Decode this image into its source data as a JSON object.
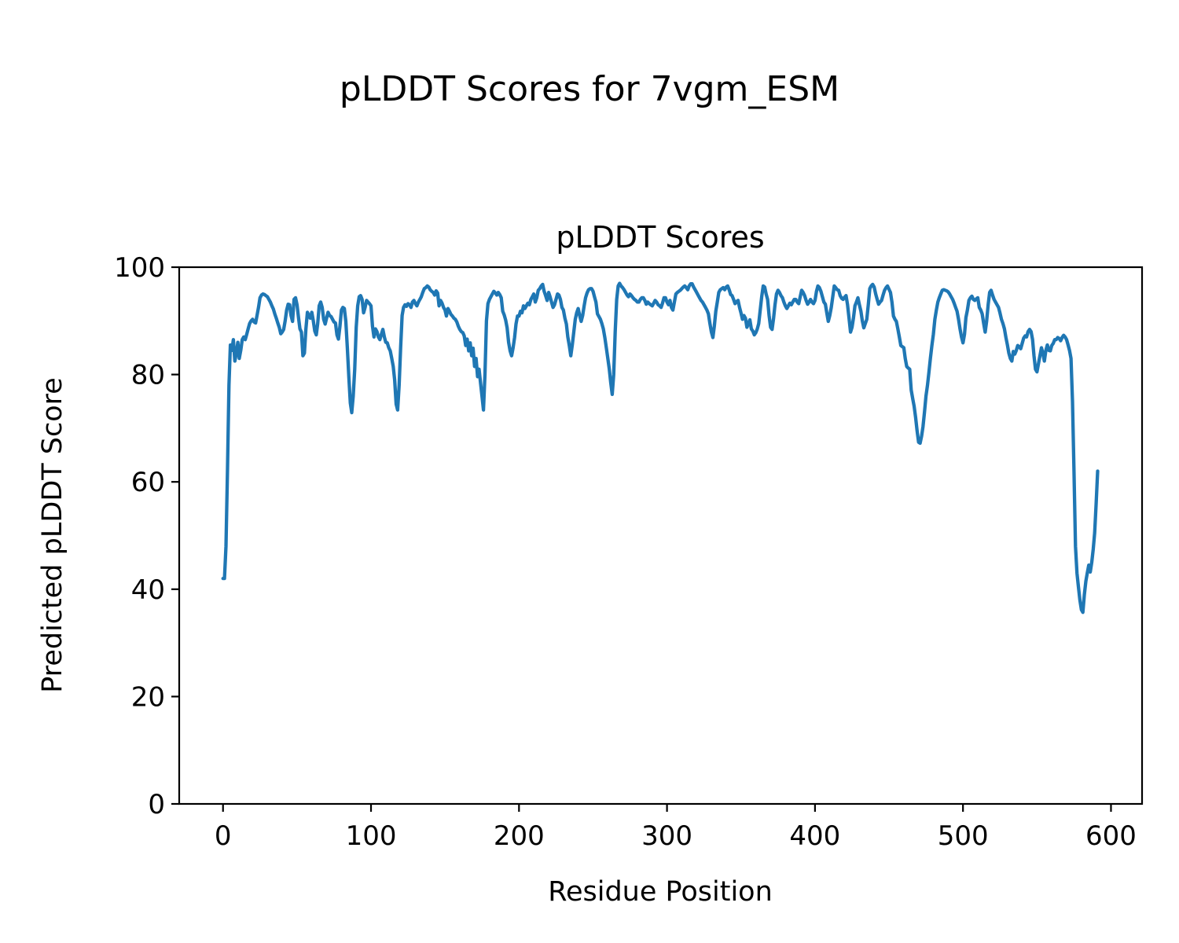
{
  "figure": {
    "suptitle": "pLDDT Scores for 7vgm_ESM",
    "background": "#ffffff"
  },
  "chart_data": {
    "type": "line",
    "title": "pLDDT Scores",
    "xlabel": "Residue Position",
    "ylabel": "Predicted pLDDT Score",
    "xlim": [
      -29.6,
      621
    ],
    "ylim": [
      0,
      100
    ],
    "xticks": [
      0,
      100,
      200,
      300,
      400,
      500,
      600
    ],
    "yticks": [
      0,
      20,
      40,
      60,
      80,
      100
    ],
    "grid": false,
    "legend": "none",
    "line_color": "#1f77b4",
    "x_start": 0,
    "x_step": 1,
    "values": [
      42,
      42,
      48,
      62,
      78,
      85.5,
      84.5,
      86.5,
      82.5,
      84,
      86,
      83,
      84.5,
      86.5,
      87,
      86.5,
      87.5,
      88.5,
      89.5,
      90,
      90.3,
      89.8,
      89.6,
      91,
      92.5,
      94.3,
      94.8,
      95,
      94.9,
      94.7,
      94.5,
      94,
      93.5,
      92.8,
      92.2,
      91.3,
      90.5,
      89.6,
      88.8,
      87.6,
      87.9,
      88.4,
      90,
      92,
      93.1,
      93,
      91,
      89.9,
      94,
      94.3,
      93,
      90.6,
      88.5,
      87.9,
      83.5,
      84,
      88.5,
      91.6,
      91,
      90.5,
      91.6,
      90,
      88.1,
      87.4,
      89.5,
      92.8,
      93.5,
      92.5,
      90.3,
      89.4,
      90.5,
      91.6,
      91,
      90.8,
      90.3,
      89.8,
      89.6,
      87.4,
      86.6,
      89,
      92,
      92.5,
      92.3,
      89.9,
      85,
      79.6,
      74.7,
      72.9,
      76,
      81,
      88.8,
      92.8,
      94.5,
      94.7,
      94,
      91.5,
      92.5,
      93.8,
      93.5,
      93.2,
      92.8,
      89,
      87,
      88.5,
      88,
      87,
      86.5,
      87.5,
      88.4,
      87,
      86,
      85.9,
      85,
      84.4,
      83,
      81.5,
      79,
      74.5,
      73.4,
      78,
      85,
      91,
      92.5,
      93,
      92.7,
      93.2,
      93,
      92.5,
      93.5,
      93.8,
      93.2,
      92.8,
      93.5,
      94,
      94.5,
      95.3,
      96,
      96.2,
      96.5,
      96.3,
      95.8,
      95.5,
      95.3,
      94.8,
      95.6,
      95.2,
      92.8,
      93.8,
      93.3,
      92.5,
      92,
      90.9,
      92.3,
      91.8,
      91.2,
      90.9,
      90.5,
      90.3,
      89.8,
      89,
      88.4,
      88,
      87.8,
      87.2,
      85.4,
      86.6,
      84.4,
      85.9,
      83.5,
      84.9,
      81.5,
      83,
      79.6,
      81,
      78.4,
      76,
      73.4,
      80,
      90,
      93.2,
      94,
      94.5,
      95,
      95.5,
      95.2,
      94.8,
      95.3,
      94.9,
      94.3,
      91.8,
      91.1,
      90.1,
      88.7,
      86,
      84.4,
      83.5,
      85,
      86.9,
      89.4,
      90.9,
      90.9,
      91.8,
      91.5,
      92.8,
      92.3,
      92.8,
      93.3,
      93,
      94,
      94.5,
      95,
      93.5,
      94.3,
      95.7,
      96,
      96.5,
      96.8,
      95.5,
      94.7,
      93.8,
      95.3,
      94.5,
      93.5,
      92.5,
      93,
      94,
      95,
      94.8,
      94,
      92.5,
      92,
      90.5,
      89.4,
      87,
      85.4,
      83.5,
      85.5,
      87.9,
      90.3,
      91.5,
      92.3,
      91,
      89.9,
      91,
      92.8,
      94.3,
      95.2,
      95.8,
      96,
      96,
      95.5,
      94.5,
      93.5,
      91.3,
      90.8,
      90.3,
      89.5,
      88.5,
      86.9,
      85,
      83,
      81,
      78.5,
      76.3,
      80,
      88,
      94,
      96.5,
      97,
      96.5,
      96.2,
      95.8,
      95.3,
      94.8,
      94.5,
      95,
      94.7,
      94.3,
      94,
      93.8,
      93.5,
      93.5,
      94,
      94.3,
      94.3,
      93.8,
      93.1,
      93.5,
      93.2,
      93,
      92.8,
      93.3,
      93.8,
      93.5,
      93,
      92.8,
      92.5,
      93.3,
      94.3,
      94.3,
      93.5,
      93,
      93.8,
      92.5,
      92,
      93.5,
      95,
      95.3,
      95.5,
      95.7,
      96,
      96.3,
      96.5,
      96.2,
      95.8,
      96.5,
      96.9,
      96.9,
      96.3,
      95.8,
      95.3,
      94.8,
      94.3,
      93.8,
      93.5,
      93,
      92.5,
      92,
      91.3,
      89.5,
      87.9,
      86.9,
      89,
      91.8,
      93.5,
      95.3,
      95.8,
      96,
      96.2,
      95.8,
      96.3,
      96.5,
      95.8,
      94.9,
      94.7,
      94,
      93.2,
      93.6,
      93.8,
      92.5,
      91.5,
      90.3,
      91,
      90.5,
      88.8,
      89.5,
      90.2,
      88.5,
      88.1,
      87.4,
      87.8,
      88.5,
      89.5,
      92,
      94.5,
      96.5,
      96.3,
      95,
      94,
      91,
      88.8,
      88.4,
      90.5,
      93,
      95,
      95.7,
      95.3,
      94.7,
      94.3,
      93.5,
      92.8,
      92.3,
      92.8,
      93.3,
      93,
      93.5,
      94,
      94,
      93.5,
      93.2,
      94.5,
      95.7,
      95.3,
      94.7,
      93.8,
      93.1,
      93.5,
      94,
      93.5,
      93.2,
      93.8,
      95.5,
      96.5,
      96.2,
      95.5,
      94.5,
      93.5,
      93.1,
      91.5,
      89.9,
      91,
      92.5,
      94.5,
      96.5,
      96.2,
      95.8,
      95.7,
      94.7,
      94.2,
      94,
      94.4,
      94.7,
      93,
      90.5,
      87.9,
      88.8,
      90.5,
      92.8,
      93.5,
      94.3,
      93,
      91.8,
      90,
      88.7,
      89.5,
      90.3,
      93,
      96,
      96.5,
      96.8,
      96.3,
      95,
      94,
      93.1,
      93.5,
      93.8,
      94.8,
      95.7,
      96.2,
      96.5,
      95.9,
      95.3,
      93.5,
      90.9,
      90.3,
      89.9,
      88.5,
      87,
      85.4,
      85.2,
      85,
      83,
      81.5,
      81.2,
      81,
      77.1,
      75.5,
      74.1,
      72,
      69.5,
      67.4,
      67.2,
      68.5,
      70.3,
      73,
      76,
      78,
      80.5,
      83,
      85.4,
      87.5,
      90.3,
      92,
      93.5,
      94.3,
      95,
      95.7,
      95.8,
      95.7,
      95.6,
      95.4,
      95,
      94.5,
      94,
      93.3,
      92.5,
      91.8,
      90.3,
      88.5,
      87,
      85.9,
      87.5,
      90.6,
      92,
      93.8,
      94.3,
      94.6,
      94,
      93.8,
      94.1,
      94.3,
      92.5,
      92,
      91.3,
      89.5,
      87.9,
      90,
      93,
      95.3,
      95.7,
      94.8,
      94,
      93.5,
      93,
      92.5,
      91.5,
      90.3,
      89.5,
      88.5,
      86.9,
      85.5,
      84,
      83,
      82.5,
      84.3,
      83.8,
      84.5,
      85.4,
      85.2,
      84.8,
      85.8,
      86.8,
      87.2,
      87,
      88,
      88.4,
      88,
      86.5,
      83.5,
      81,
      80.5,
      82,
      83.5,
      85,
      84,
      82.5,
      84.5,
      85.5,
      84.5,
      84.4,
      85.4,
      85.8,
      86.5,
      86.5,
      86.9,
      86.7,
      86.3,
      86.9,
      87.3,
      87,
      86.5,
      85.5,
      84.5,
      83,
      75,
      62,
      48,
      43,
      40.5,
      38,
      36.2,
      35.7,
      39,
      41.5,
      43,
      44.5,
      43.2,
      45,
      47.5,
      50.5,
      56,
      62
    ]
  }
}
